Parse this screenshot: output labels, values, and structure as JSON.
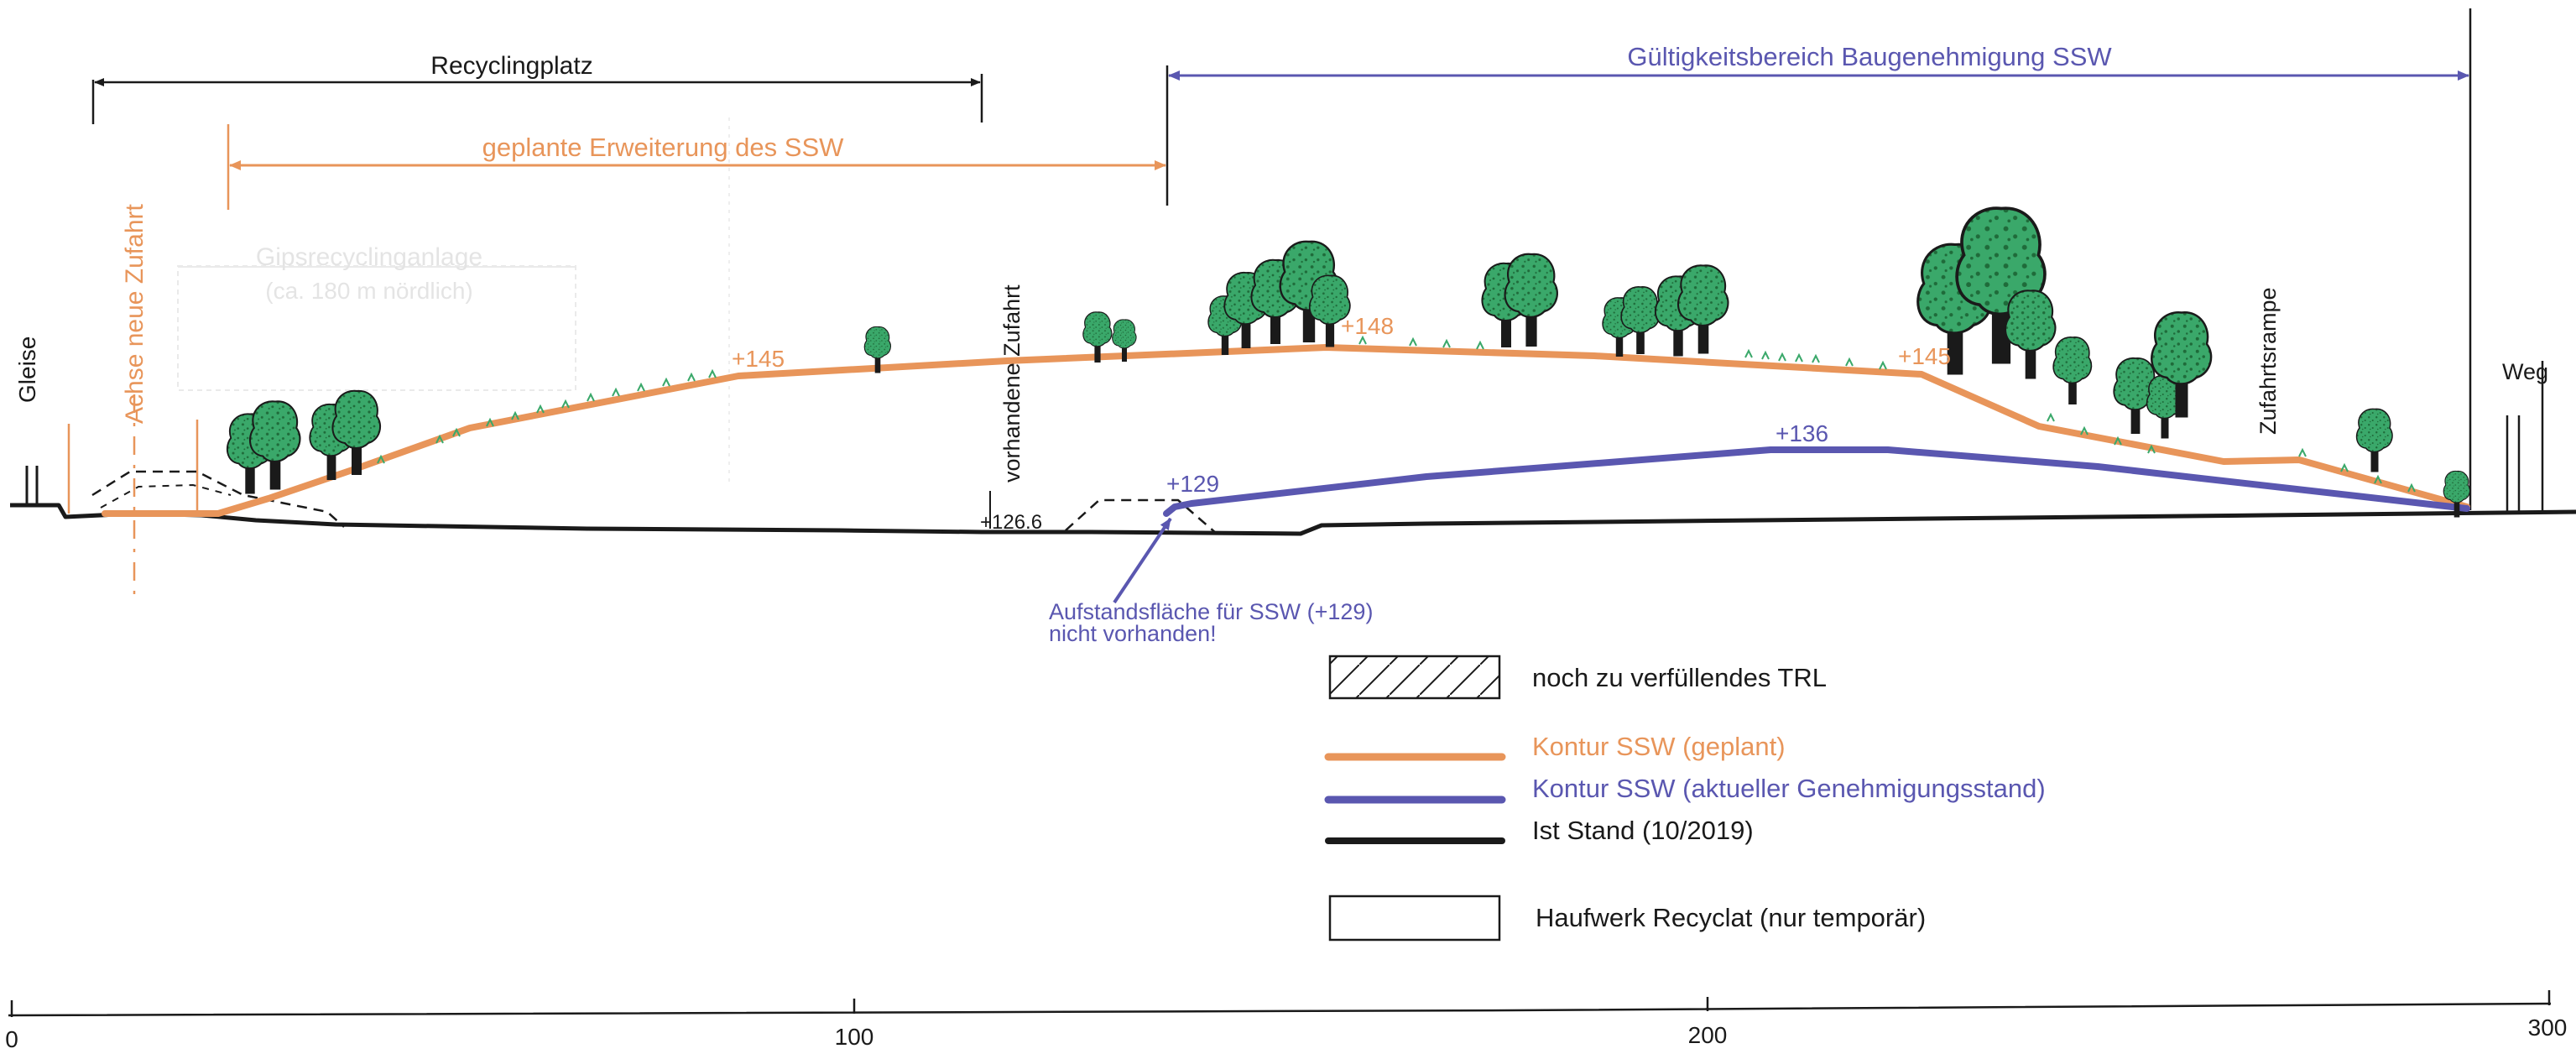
{
  "colors": {
    "planned": "#e8955a",
    "approved": "#5a57b0",
    "existing": "#1a1a1a",
    "tree_fill": "#3aa86a",
    "tree_dots": "#1f6b3a",
    "faint": "#e2e2e2"
  },
  "dimensions": {
    "recyclingplatz": "Recyclingplatz",
    "erweiterung": "geplante Erweiterung des SSW",
    "gueltigkeit": "Gültigkeitsbereich Baugenehmigung SSW"
  },
  "labels": {
    "gleise": "Gleise",
    "achse": "Achse neue Zufahrt",
    "vorhandene_zufahrt": "vorhandene Zufahrt",
    "zufahrtsrampe": "Zufahrtsrampe",
    "weg": "Weg",
    "gips_line1": "Gipsrecyclinganlage",
    "gips_line2": "(ca. 180 m nördlich)"
  },
  "elevations": {
    "planned_145_a": "+145",
    "planned_148": "+148",
    "planned_145_b": "+145",
    "approved_129": "+129",
    "approved_136": "+136",
    "existing_1266": "+126.6"
  },
  "annotation": {
    "line1": "Aufstandsfläche für SSW (+129)",
    "line2": "nicht vorhanden!"
  },
  "legend": {
    "hatch": "noch zu verfüllendes TRL",
    "planned": "Kontur SSW (geplant)",
    "approved": "Kontur SSW (aktueller Genehmigungsstand)",
    "existing": "Ist Stand (10/2019)",
    "heap": "Haufwerk Recyclat (nur temporär)"
  },
  "scale": {
    "ticks": [
      "0",
      "100",
      "200",
      "300"
    ]
  }
}
